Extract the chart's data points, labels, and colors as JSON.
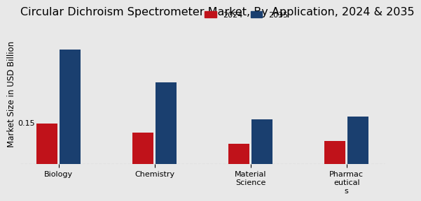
{
  "title": "Circular Dichroism Spectrometer Market, By Application, 2024 & 2035",
  "ylabel": "Market Size in USD Billion",
  "categories": [
    "Biology",
    "Chemistry",
    "Material\nScience",
    "Pharmac\neutical\ns"
  ],
  "values_2024": [
    0.15,
    0.115,
    0.075,
    0.085
  ],
  "values_2035": [
    0.42,
    0.3,
    0.165,
    0.175
  ],
  "color_2024": "#c0121a",
  "color_2035": "#1a3f6f",
  "legend_2024": "2024",
  "legend_2035": "2035",
  "bar_width": 0.22,
  "ylim": [
    0,
    0.52
  ],
  "annotation_text": "0.15",
  "background_color": "#e8e8e8",
  "title_fontsize": 11.5,
  "label_fontsize": 8.5,
  "tick_fontsize": 8,
  "legend_fontsize": 8
}
